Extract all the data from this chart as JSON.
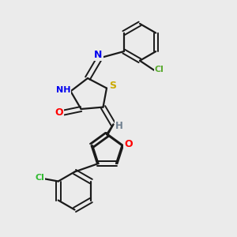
{
  "bg_color": "#ebebeb",
  "bond_color": "#1a1a1a",
  "atom_colors": {
    "N": "#0000ee",
    "O": "#ff0000",
    "S": "#ccaa00",
    "Cl_upper": "#5aaa30",
    "Cl_lower": "#33bb33",
    "H": "#708090",
    "C": "#1a1a1a"
  }
}
